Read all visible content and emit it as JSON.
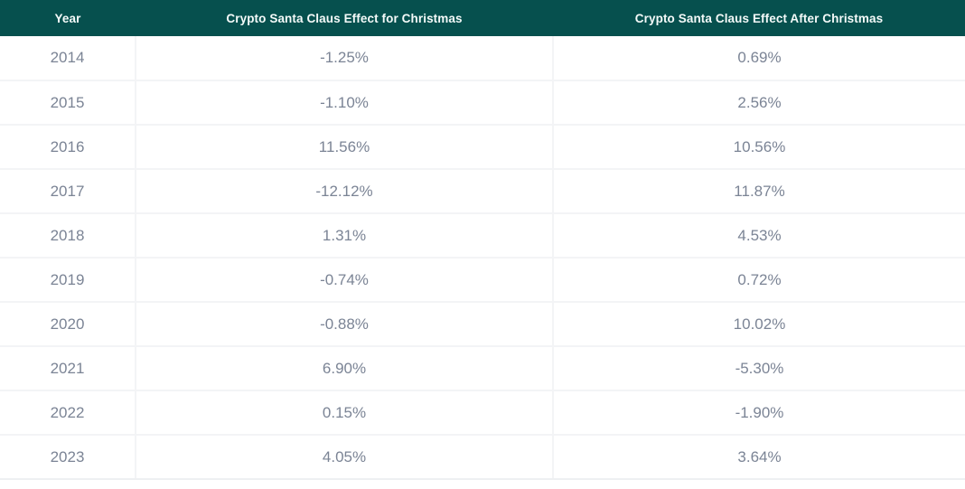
{
  "colors": {
    "header_bg": "#06504e",
    "header_text": "#f4faf9",
    "body_text": "#7b8495",
    "divider": "#f3f4f6"
  },
  "chart_data": {
    "type": "table",
    "columns": [
      "Year",
      "Crypto Santa Claus Effect for Christmas",
      "Crypto Santa Claus Effect After Christmas"
    ],
    "rows": [
      [
        "2014",
        "-1.25%",
        "0.69%"
      ],
      [
        "2015",
        "-1.10%",
        "2.56%"
      ],
      [
        "2016",
        "11.56%",
        "10.56%"
      ],
      [
        "2017",
        "-12.12%",
        "11.87%"
      ],
      [
        "2018",
        "1.31%",
        "4.53%"
      ],
      [
        "2019",
        "-0.74%",
        "0.72%"
      ],
      [
        "2020",
        "-0.88%",
        "10.02%"
      ],
      [
        "2021",
        "6.90%",
        "-5.30%"
      ],
      [
        "2022",
        "0.15%",
        "-1.90%"
      ],
      [
        "2023",
        "4.05%",
        "3.64%"
      ]
    ]
  }
}
